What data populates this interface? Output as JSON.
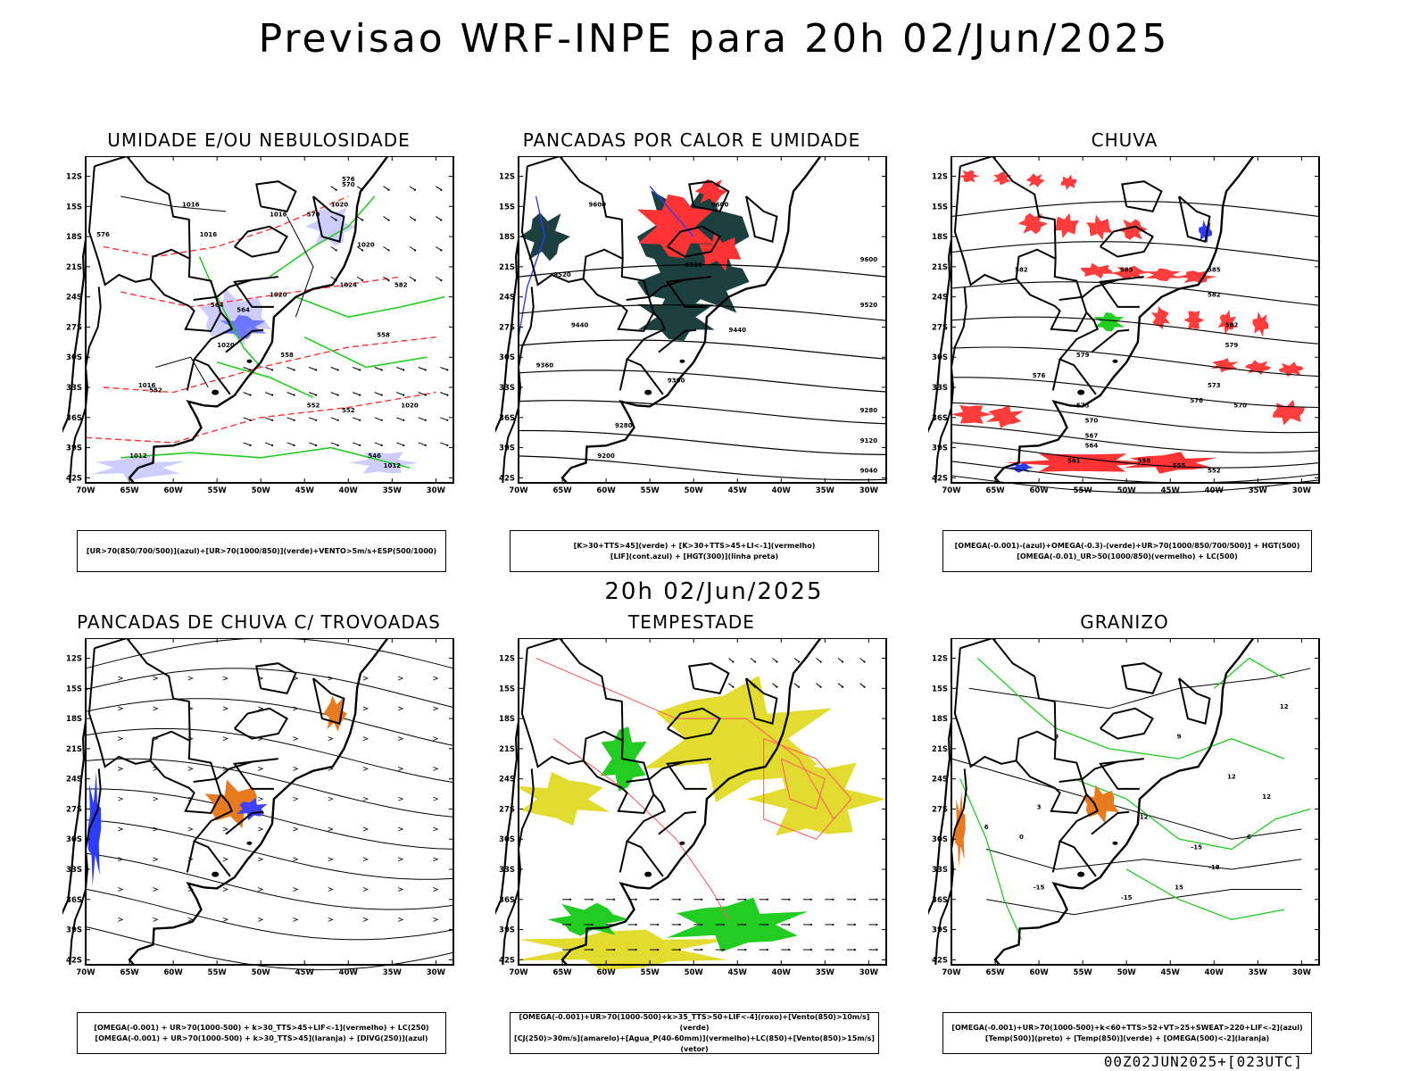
{
  "title": "Previsao WRF-INPE  para 20h 02/Jun/2025",
  "mid_timestamp": "20h 02/Jun/2025",
  "footer": "00Z02JUN2025+[023UTC]",
  "lat_labels": [
    "12S",
    "15S",
    "18S",
    "21S",
    "24S",
    "27S",
    "30S",
    "33S",
    "36S",
    "39S",
    "42S"
  ],
  "lon_labels": [
    "70W",
    "65W",
    "60W",
    "55W",
    "50W",
    "45W",
    "40W",
    "35W",
    "30W"
  ],
  "panels": [
    {
      "id": "umidade",
      "title": "UMIDADE E/OU NEBULOSIDADE",
      "legend": [
        "[UR>70(850/700/500)](azul)+[UR>70(1000/850)](verde)+VENTO>5m/s+ESP(500/1000)"
      ],
      "contour_labels": [
        "1016",
        "1016",
        "1016",
        "1020",
        "1020",
        "1024",
        "1020",
        "1020",
        "1012",
        "1012",
        "1016",
        "1020",
        "570",
        "570",
        "576",
        "564",
        "564",
        "558",
        "558",
        "552",
        "552",
        "552",
        "546",
        "582",
        "576"
      ]
    },
    {
      "id": "pancadas-calor",
      "title": "PANCADAS POR CALOR E UMIDADE",
      "legend": [
        "[K>30+TTS>45](verde) + [K>30+TTS>45+LI<-1](vermelho)",
        "[LIF](cont.azul) + [HGT(300)](linha preta)"
      ],
      "contour_labels": [
        "9600",
        "9600",
        "9520",
        "9520",
        "9440",
        "9440",
        "9360",
        "9360",
        "9280",
        "9280",
        "9200",
        "9120",
        "9040",
        "9600",
        "9520"
      ]
    },
    {
      "id": "chuva",
      "title": "CHUVA",
      "legend": [
        "[OMEGA(-0.001)-(azul)+OMEGA(-0.3)-(verde)+UR>70(1000/850/700/500)] + HGT(500)",
        "[OMEGA(-0.01)_UR>50(1000/850)(vermelho) + LC(500)"
      ],
      "contour_labels": [
        "585",
        "582",
        "582",
        "579",
        "579",
        "576",
        "576",
        "573",
        "573",
        "570",
        "570",
        "567",
        "564",
        "561",
        "558",
        "555",
        "552",
        "585",
        "582"
      ]
    },
    {
      "id": "pancadas-trovoadas",
      "title": "PANCADAS DE CHUVA C/ TROVOADAS",
      "legend": [
        "[OMEGA(-0.001) + UR>70(1000-500) + k>30_TTS>45+LIF<-1](vermelho) + LC(250)",
        "[OMEGA(-0.001) + UR>70(1000-500) + k>30_TTS>45](laranja) + [DIVG(250)](azul)"
      ],
      "contour_labels": []
    },
    {
      "id": "tempestade",
      "title": "TEMPESTADE",
      "legend": [
        "[OMEGA(-0.001)+UR>70(1000-500)+k>35_TTS>50+LIF<-4](roxo)+[Vento(850)>10m/s](verde)",
        "[CJ(250)>30m/s](amarelo)+[Agua_P(40-60mm)](vermelho)+LC(850)+[Vento(850)>15m/s](vetor)"
      ],
      "contour_labels": []
    },
    {
      "id": "granizo",
      "title": "GRANIZO",
      "legend": [
        "[OMEGA(-0.001)+UR>70(1000-500)+k<60+TTS>52+VT>25+SWEAT>220+LIF<-2](azul)",
        "[Temp(500)](preto) + [Temp(850)](verde) + [OMEGA(500)<-2](laranja)"
      ],
      "contour_labels": [
        "-15",
        "-15",
        "-18",
        "-15",
        "12",
        "12",
        "12",
        "9",
        "9",
        "6",
        "3",
        "0",
        "6",
        "12",
        "15"
      ]
    }
  ],
  "colors": {
    "blue": "#2b3cff",
    "green": "#22cc22",
    "red": "#ff3333",
    "dark_teal": "#1c4040",
    "orange": "#e87a20",
    "yellow": "#e3dc30",
    "lavender": "#c8c8ff",
    "lightred": "#ff6060"
  }
}
